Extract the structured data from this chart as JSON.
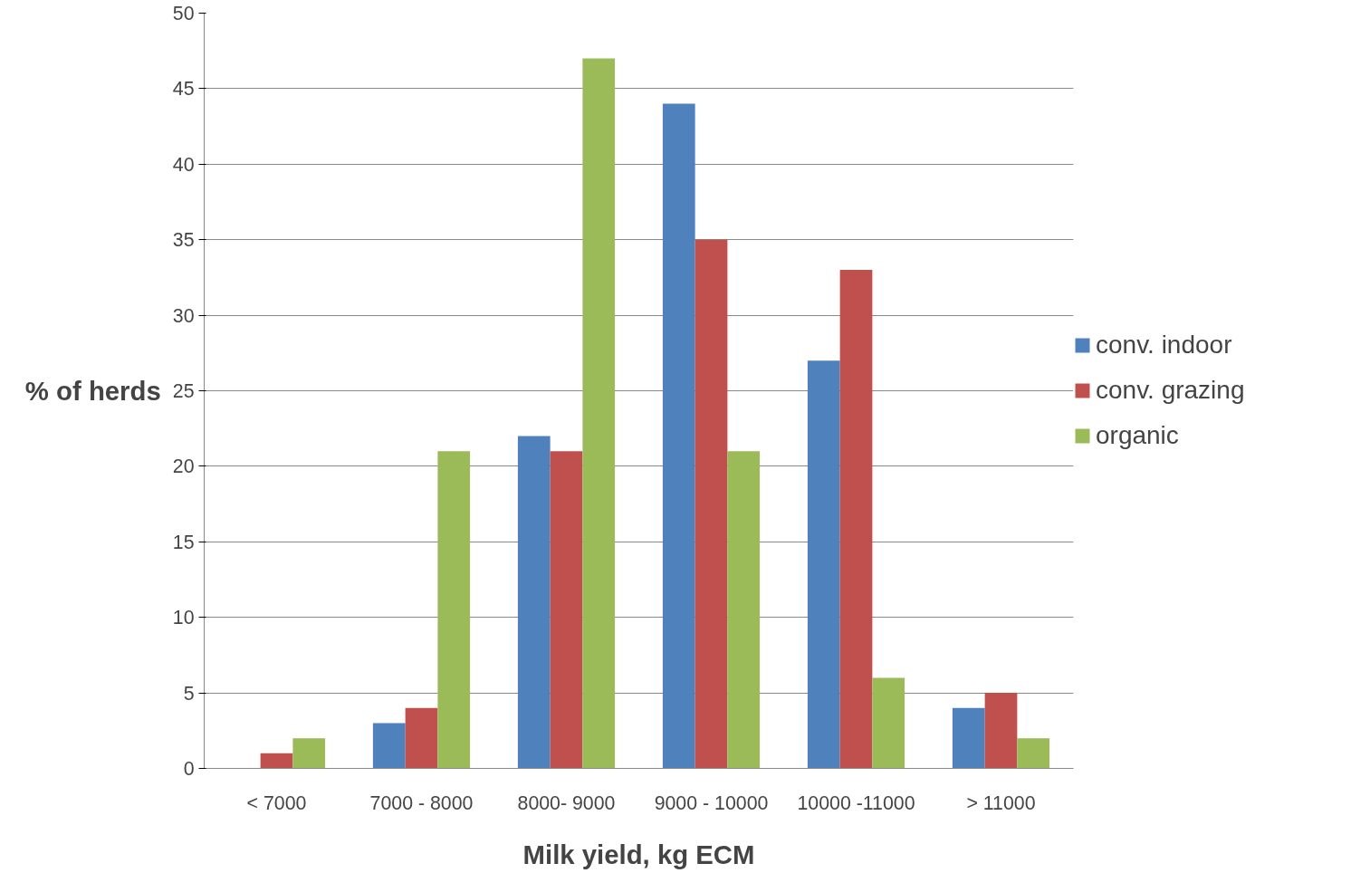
{
  "chart_data": {
    "type": "bar",
    "xlabel": "Milk yield, kg ECM",
    "ylabel": "% of herds",
    "categories": [
      "< 7000",
      "7000 - 8000",
      "8000- 9000",
      "9000 - 10000",
      "10000 -11000",
      "> 11000"
    ],
    "series": [
      {
        "name": "conv. indoor",
        "color": "#4f81bd",
        "values": [
          0,
          3,
          22,
          44,
          27,
          4
        ]
      },
      {
        "name": "conv. grazing",
        "color": "#c0504d",
        "values": [
          1,
          4,
          21,
          35,
          33,
          5
        ]
      },
      {
        "name": "organic",
        "color": "#9bbb59",
        "values": [
          2,
          21,
          47,
          21,
          6,
          2
        ]
      }
    ],
    "ylim": [
      0,
      50
    ],
    "yticks": [
      0,
      5,
      10,
      15,
      20,
      25,
      30,
      35,
      40,
      45,
      50
    ],
    "grid": "y",
    "legend": "right"
  }
}
